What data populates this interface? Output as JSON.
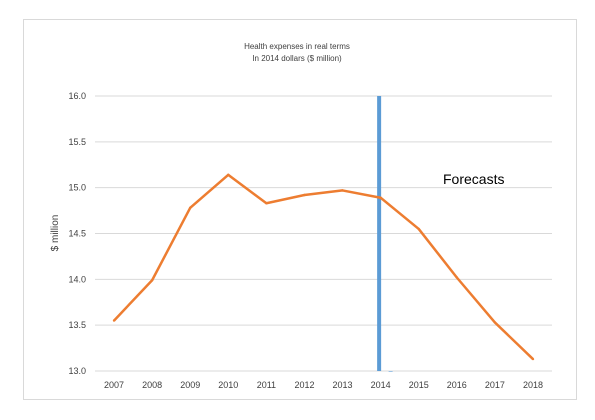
{
  "chart_data": {
    "type": "line",
    "title": "Health expenses in real terms",
    "subtitle": "In 2014 dollars ($ million)",
    "xlabel": "",
    "ylabel": "$ million",
    "categories": [
      "2007",
      "2008",
      "2009",
      "2010",
      "2011",
      "2012",
      "2013",
      "2014",
      "2015",
      "2016",
      "2017",
      "2018"
    ],
    "series": [
      {
        "values": [
          13.55,
          13.99,
          14.78,
          15.14,
          14.83,
          14.92,
          14.97,
          14.89,
          14.55,
          14.02,
          13.53,
          13.13
        ]
      }
    ],
    "yticks": [
      "13.0",
      "13.5",
      "14.0",
      "14.5",
      "15.0",
      "15.5",
      "16.0"
    ],
    "ylim": [
      13.0,
      16.0
    ],
    "grid": true,
    "legend": "none",
    "annotations": [
      {
        "text": "Forecasts"
      }
    ],
    "marker_category": "2014",
    "colors": {
      "series": "#ed7d31",
      "marker_line": "#5b9bd5",
      "grid": "#d9d9d9",
      "text": "#404040"
    }
  }
}
